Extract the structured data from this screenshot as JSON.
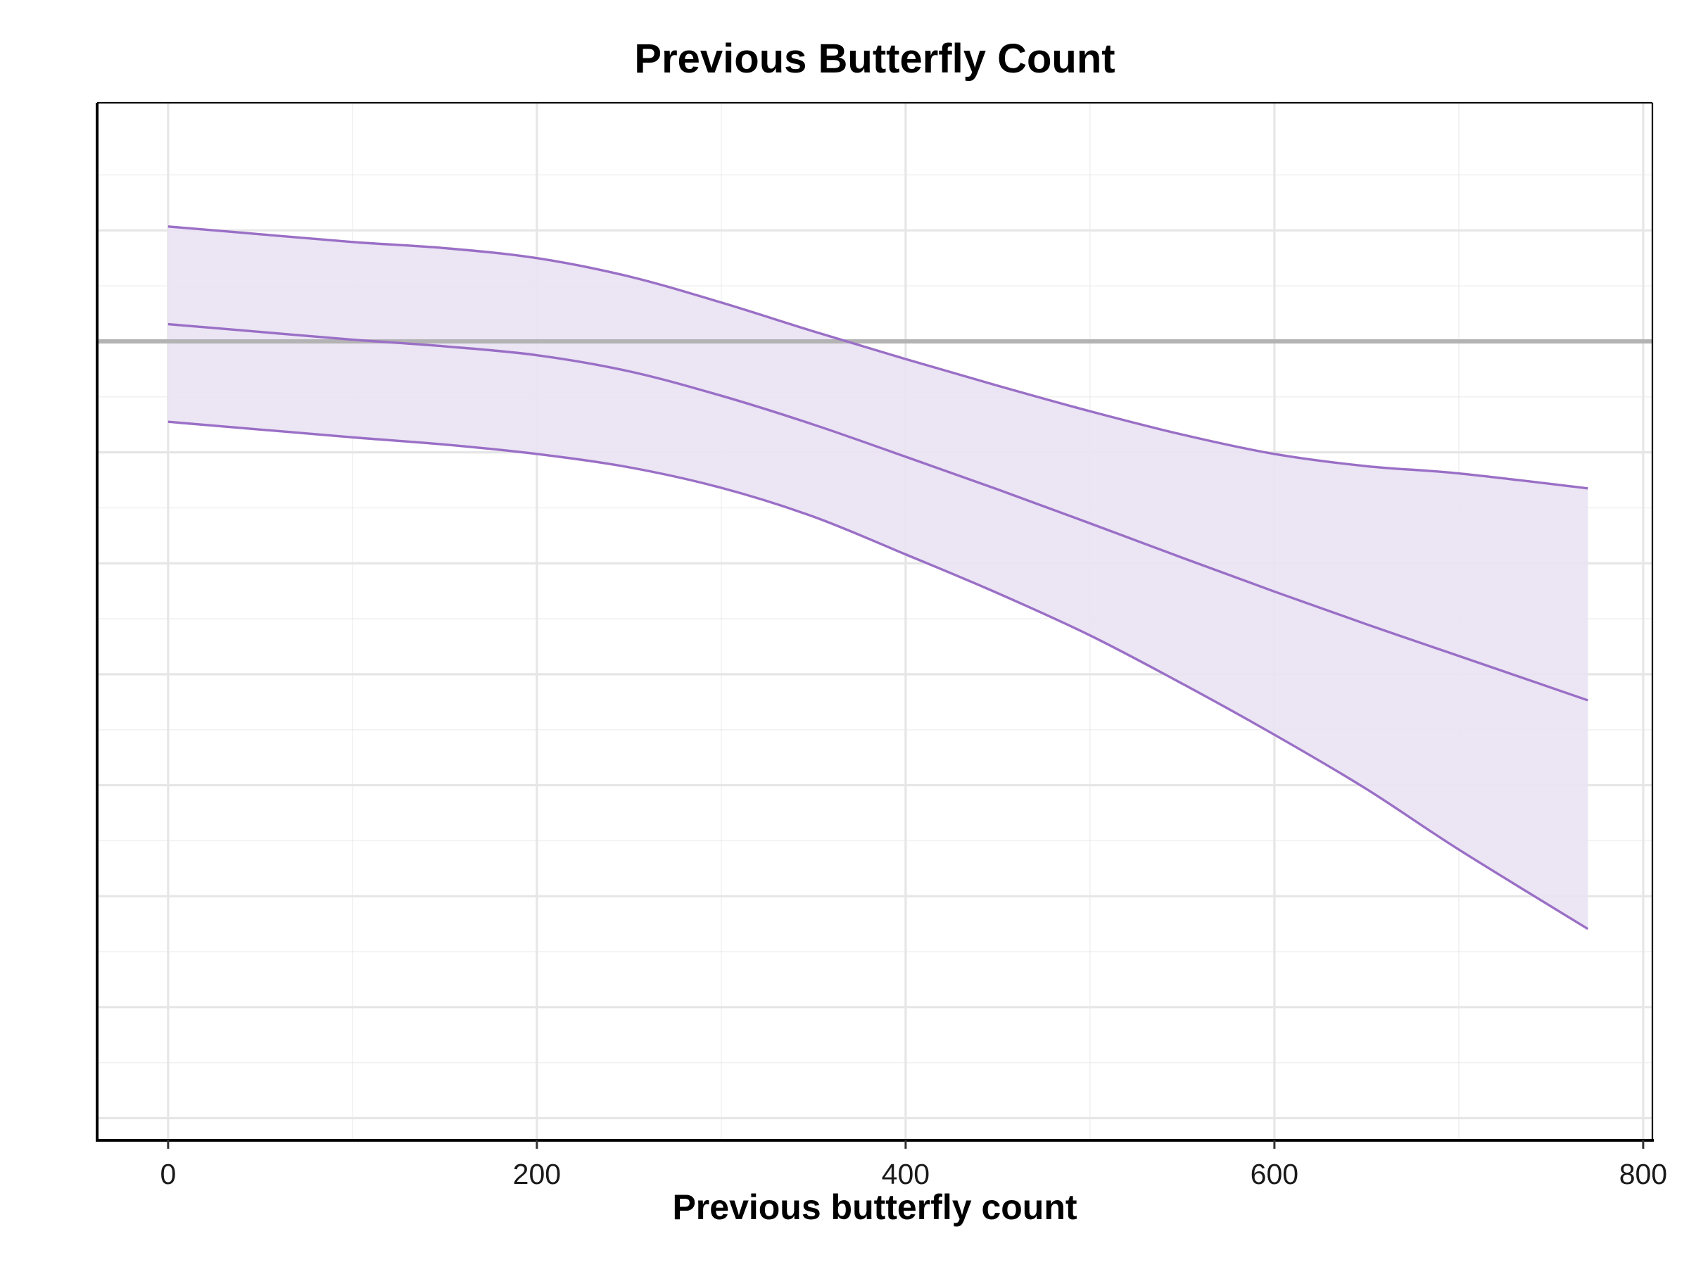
{
  "chart_data": {
    "type": "line",
    "title": "Previous Butterfly Count",
    "xlabel": "Previous butterfly count",
    "ylabel": "",
    "xlim": [
      -38.5,
      805
    ],
    "ylim": [
      -0.84,
      1.03
    ],
    "x_ticks": [
      0,
      200,
      400,
      600,
      800
    ],
    "x_minor_ticks": [
      100,
      300,
      500,
      700
    ],
    "y_gridlines_major": [
      -0.8,
      -0.6,
      -0.4,
      -0.2,
      0.0,
      0.2,
      0.4,
      0.6,
      0.8
    ],
    "y_gridlines_minor": [
      -0.7,
      -0.5,
      -0.3,
      -0.1,
      0.1,
      0.3,
      0.5,
      0.7,
      0.9
    ],
    "y_tick_labels_shown": false,
    "grid": true,
    "reference_line": {
      "y": 0.6,
      "color": "#b3b3b3"
    },
    "colors": {
      "line": "#9a6fc6",
      "ribbon_fill": "#e9e2f3",
      "grid": "#e6e6e6",
      "axis": "#000000"
    },
    "series": [
      {
        "role": "estimate",
        "x": [
          0,
          50,
          100,
          150,
          200,
          250,
          300,
          350,
          400,
          450,
          500,
          550,
          600,
          650,
          700,
          770
        ],
        "y": [
          0.631,
          0.617,
          0.603,
          0.591,
          0.575,
          0.546,
          0.502,
          0.45,
          0.392,
          0.333,
          0.272,
          0.21,
          0.149,
          0.09,
          0.033,
          -0.047
        ]
      },
      {
        "role": "upper_bound",
        "x": [
          0,
          50,
          100,
          150,
          200,
          250,
          300,
          350,
          400,
          450,
          500,
          550,
          600,
          650,
          700,
          770
        ],
        "y": [
          0.807,
          0.793,
          0.779,
          0.768,
          0.75,
          0.717,
          0.67,
          0.618,
          0.568,
          0.52,
          0.474,
          0.432,
          0.397,
          0.375,
          0.362,
          0.335
        ]
      },
      {
        "role": "lower_bound",
        "x": [
          0,
          50,
          100,
          150,
          200,
          250,
          300,
          350,
          400,
          450,
          500,
          550,
          600,
          650,
          700,
          770
        ],
        "y": [
          0.455,
          0.441,
          0.427,
          0.414,
          0.397,
          0.373,
          0.336,
          0.284,
          0.216,
          0.146,
          0.07,
          -0.017,
          -0.109,
          -0.207,
          -0.316,
          -0.459
        ]
      }
    ]
  }
}
